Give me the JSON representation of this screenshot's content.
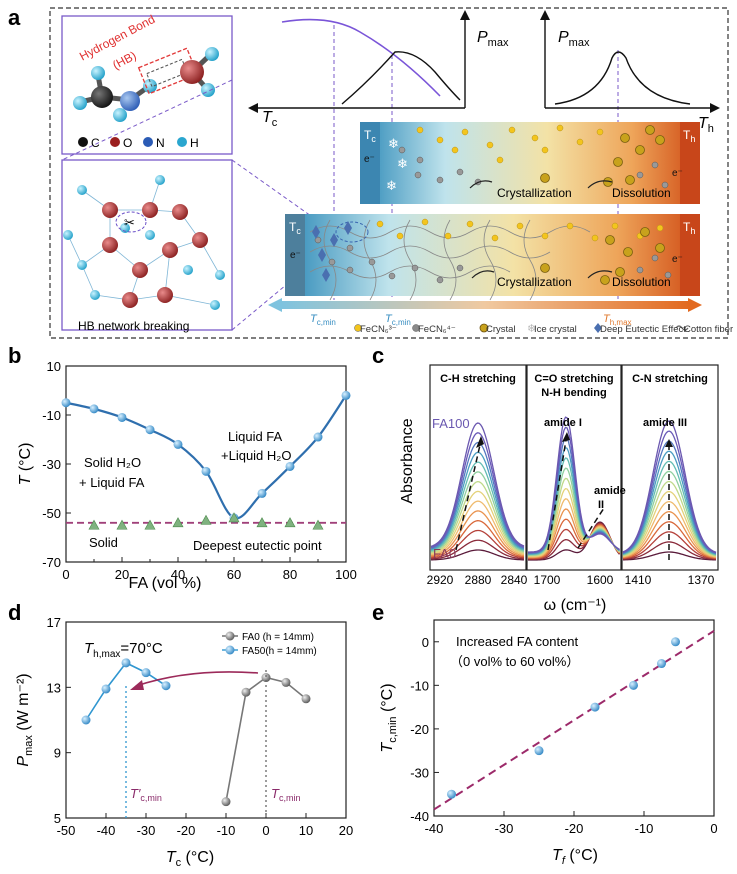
{
  "panel_labels": {
    "a": "a",
    "b": "b",
    "c": "c",
    "d": "d",
    "e": "e"
  },
  "panel_a": {
    "molecule_legend": [
      "C",
      "O",
      "N",
      "H"
    ],
    "hb_label_line1": "Hydrogen Bond",
    "hb_label_line2": "(HB)",
    "hb_breaking": "HB network breaking",
    "pmax": "P",
    "pmax_sub": "max",
    "tc": "T",
    "tc_sub": "c",
    "th": "T",
    "th_sub": "h",
    "tcmin_sub": "c,min",
    "thmax_sub": "h,max",
    "crystallization": "Crystallization",
    "dissolution": "Dissolution",
    "electron": "e⁻",
    "legend": [
      {
        "label": "FeCN₆³⁻",
        "color": "#f3c51d"
      },
      {
        "label": "FeCN₆⁴⁻",
        "color": "#8a8a8a"
      },
      {
        "label": "Crystal",
        "color": "#c8a21c"
      },
      {
        "label": "Ice crystal",
        "color": "#b8b8b8"
      },
      {
        "label": "Deep Eutectic Effect",
        "color": "#4a6fb0"
      },
      {
        "label": "Cotton fiber",
        "color": "#666666"
      }
    ]
  },
  "chart_data": [
    {
      "id": "b",
      "type": "line",
      "title": "",
      "xlabel": "FA (vol %)",
      "ylabel": "T (°C)",
      "xlim": [
        0,
        100
      ],
      "ylim": [
        -70,
        10
      ],
      "xticks": [
        "0",
        "20",
        "40",
        "60",
        "80",
        "100"
      ],
      "yticks": [
        "-70",
        "-50",
        "-30",
        "-10",
        "10"
      ],
      "series": [
        {
          "name": "liquidus",
          "x": [
            0,
            10,
            20,
            30,
            40,
            50,
            60,
            70,
            80,
            90,
            100
          ],
          "y": [
            -5,
            -7.5,
            -11,
            -16,
            -22,
            -33,
            -52,
            -42,
            -31,
            -19,
            -2
          ]
        },
        {
          "name": "eutectic",
          "x": [
            10,
            20,
            30,
            40,
            50,
            60,
            70,
            80,
            90
          ],
          "y": [
            -55,
            -55,
            -55,
            -54,
            -53,
            -52,
            -54,
            -54,
            -55
          ]
        }
      ],
      "eutectic_line": -54,
      "annotations": [
        "Liquid FA",
        "+Liquid H₂O",
        "Solid H₂O",
        "+ Liquid FA",
        "Solid",
        "Deepest eutectic point"
      ]
    },
    {
      "id": "c",
      "type": "line",
      "ylabel": "Absorbance",
      "xlabel": "ω (cm⁻¹)",
      "subpanels": [
        {
          "title": "C-H stretching",
          "xticks": [
            "2920",
            "2880",
            "2840"
          ]
        },
        {
          "title": "C=O stretching",
          "title2": "N-H bending",
          "xticks": [
            "1700",
            "1600"
          ],
          "annotations": [
            "amide I",
            "amide",
            "II"
          ]
        },
        {
          "title": "C-N stretching",
          "xticks": [
            "1410",
            "1370"
          ],
          "annotations": [
            "amide III"
          ]
        }
      ],
      "series_labels": [
        "FA100",
        "FA0"
      ]
    },
    {
      "id": "d",
      "type": "line",
      "xlabel": "T",
      "xlabel_sub": "c",
      "xlabel_unit": " (°C)",
      "ylabel": "P",
      "ylabel_sub": "max",
      "ylabel_unit": " (W m⁻²)",
      "xlim": [
        -50,
        20
      ],
      "ylim": [
        5,
        17
      ],
      "xticks": [
        "-50",
        "-40",
        "-30",
        "-20",
        "-10",
        "0",
        "10",
        "20"
      ],
      "yticks": [
        "5",
        "9",
        "13",
        "17"
      ],
      "series": [
        {
          "name": "FA0",
          "legend": "FA0  (h = 14mm)",
          "color": "#777777",
          "x": [
            -10,
            -5,
            0,
            5,
            10
          ],
          "y": [
            6,
            12.7,
            13.6,
            13.3,
            12.3
          ]
        },
        {
          "name": "FA50",
          "legend": "FA50(h = 14mm)",
          "color": "#2f96d0",
          "x": [
            -45,
            -40,
            -35,
            -30,
            -25
          ],
          "y": [
            11,
            12.9,
            14.5,
            13.9,
            13.1
          ]
        }
      ],
      "thmax_text": "=70°C",
      "thmax_prefix": "T",
      "thmax_sub": "h,max",
      "tcmin_prime": "T′",
      "tcmin": "T"
    },
    {
      "id": "e",
      "type": "scatter",
      "xlabel": "T",
      "xlabel_sub": "f",
      "xlabel_unit": " (°C)",
      "ylabel": "T",
      "ylabel_sub": "c,min",
      "ylabel_unit": " (°C)",
      "xlim": [
        -40,
        0
      ],
      "ylim": [
        -40,
        5
      ],
      "xticks": [
        "-40",
        "-30",
        "-20",
        "-10",
        "0"
      ],
      "yticks": [
        "-40",
        "-30",
        "-20",
        "-10",
        "0"
      ],
      "points": {
        "x": [
          -37.5,
          -25,
          -17,
          -11.5,
          -7.5,
          -5.5
        ],
        "y": [
          -35,
          -25,
          -15,
          -10,
          -5,
          0
        ]
      },
      "fit": {
        "x": [
          -40,
          0
        ],
        "y": [
          -38.5,
          2.5
        ]
      },
      "annotation1": "Increased FA content",
      "annotation2": "（0 vol% to 60 vol%）"
    }
  ]
}
